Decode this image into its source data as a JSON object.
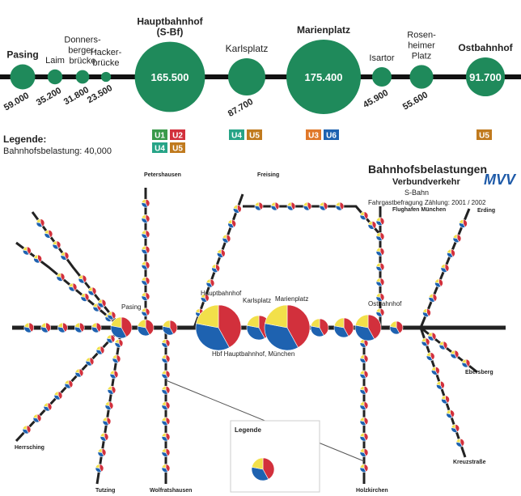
{
  "chart_data": {
    "type": "bubble",
    "categories": [
      "Pasing",
      "Laim",
      "Donners-\nberger-\nbrücke",
      "Hacker-\nbrücke",
      "Hauptbahnhof\n(S-Bf)",
      "Karlsplatz",
      "Marienplatz",
      "Isartor",
      "Rosen-\nheimer\nPlatz",
      "Ostbahnhof"
    ],
    "values": [
      59000,
      35200,
      31800,
      23500,
      165500,
      87700,
      175400,
      45900,
      55600,
      91700
    ],
    "value_labels": [
      "59.000",
      "35.200",
      "31.800",
      "23.500",
      "165.500",
      "87.700",
      "175.400",
      "45.900",
      "55.600",
      "91.700"
    ],
    "color": "#1f8a5b",
    "lines": [
      [],
      [],
      [],
      [],
      [
        "U1",
        "U2",
        "U4",
        "U5"
      ],
      [
        "U4",
        "U5"
      ],
      [
        "U3",
        "U6"
      ],
      [],
      [],
      [
        "U5"
      ]
    ],
    "line_colors": {
      "U1": "#3a9a4a",
      "U2": "#d2303c",
      "U3": "#e0782a",
      "U4": "#27a487",
      "U5": "#c07a1e",
      "U6": "#1e62b0"
    },
    "legend_title": "Legende:",
    "legend_text": "Bahnhofsbelastung: 40,000"
  },
  "map": {
    "title": "Bahnhofsbelastungen",
    "subtitle": "Verbundverkehr",
    "mode": "S-Bahn",
    "note": "Fahrgastbefragung Zählung: 2001 / 2002",
    "logo": "MVV",
    "stations": [
      "Petershausen",
      "Freising",
      "Flughafen München",
      "Erding",
      "Ebersberg",
      "Kreuzstraße",
      "Holzkirchen",
      "Wolfratshausen",
      "Tutzing",
      "Herrsching",
      "Pasing",
      "Hauptbahnhof",
      "Karlsplatz",
      "Marienplatz",
      "Ostbahnhof",
      "Hbf Hauptbahnhof, München"
    ],
    "legend": "Legende"
  }
}
